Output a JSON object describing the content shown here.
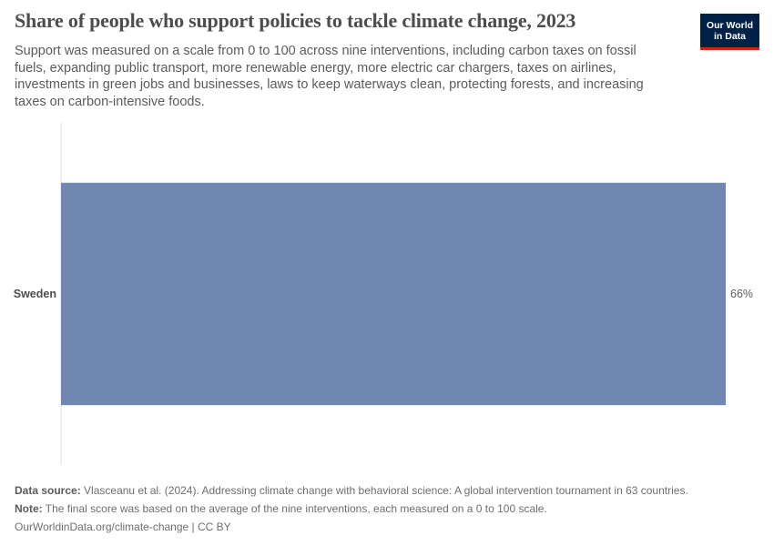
{
  "header": {
    "title": "Share of people who support policies to tackle climate change, 2023",
    "subtitle": "Support was measured on a scale from 0 to 100 across nine interventions, including carbon taxes on fossil fuels, expanding public transport, more renewable energy, more electric car chargers, taxes on airlines, investments in green jobs and businesses, laws to keep waterways clean, protecting forests, and increasing taxes on carbon-intensive foods.",
    "logo_line1": "Our World",
    "logo_line2": "in Data"
  },
  "chart_data": {
    "type": "bar",
    "orientation": "horizontal",
    "title": "Share of people who support policies to tackle climate change, 2023",
    "categories": [
      "Sweden"
    ],
    "values": [
      66
    ],
    "value_labels": [
      "66%"
    ],
    "unit": "%",
    "xlim": [
      0,
      66
    ],
    "grid": false,
    "bar_color": "#6f87b1"
  },
  "footer": {
    "source_label": "Data source:",
    "source_text": "Vlasceanu et al. (2024). Addressing climate change with behavioral science: A global intervention tournament in 63 countries.",
    "note_label": "Note:",
    "note_text": "The final score was based on the average of the nine interventions, each measured on a 0 to 100 scale.",
    "link_text": "OurWorldinData.org/climate-change",
    "license_text": "| CC BY"
  },
  "colors": {
    "bar": "#6f87b1",
    "axis": "#dddddd",
    "logo_bg": "#002147",
    "logo_accent": "#ce261e"
  }
}
